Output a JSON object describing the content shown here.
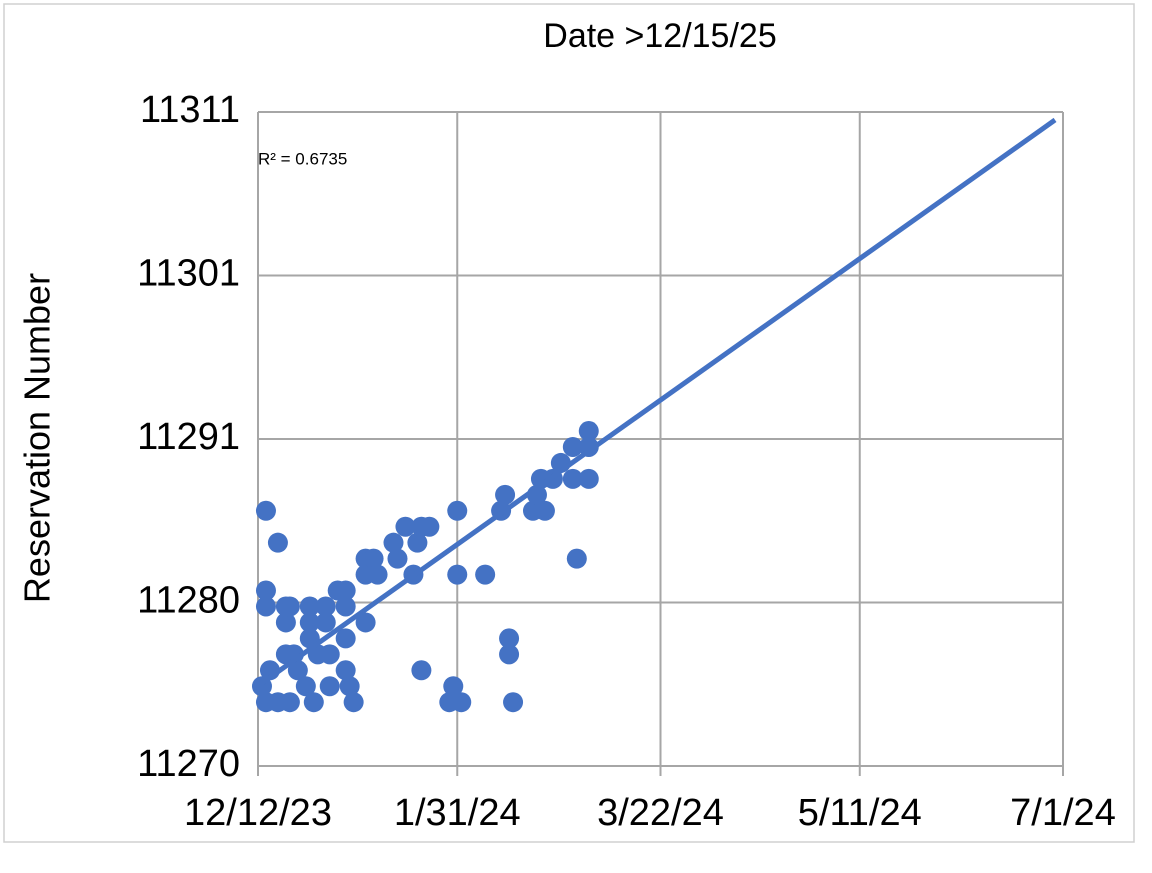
{
  "chart_data": {
    "type": "scatter",
    "title": "Date >12/15/25",
    "y_label": "Reservation Number",
    "annotation": "R² = 0.6735",
    "xlim": [
      "12/12/23",
      "7/1/24"
    ],
    "xticks": [
      "12/12/23",
      "1/31/24",
      "3/22/24",
      "5/11/24",
      "7/1/24"
    ],
    "ylim": [
      11270,
      11311
    ],
    "yticks": [
      11270,
      {
        "value": 11280.25,
        "label": "11280"
      },
      {
        "value": 11290.5,
        "label": "11291"
      },
      {
        "value": 11300.75,
        "label": "11301"
      },
      11311
    ],
    "grid": true,
    "series": [
      {
        "color": "#4472c4",
        "x": [
          "12/14/23",
          "12/14/23",
          "12/14/23",
          "12/13/23",
          "12/14/23",
          "12/15/23",
          "12/17/23",
          "12/19/23",
          "12/19/23",
          "12/20/23",
          "12/19/23",
          "12/21/23",
          "12/20/23",
          "12/17/23",
          "12/22/23",
          "12/24/23",
          "12/25/23",
          "12/25/23",
          "12/25/23",
          "12/26/23",
          "12/27/23",
          "12/29/23",
          "12/29/23",
          "12/30/23",
          "12/30/23",
          "1/1/24",
          "1/3/24",
          "1/3/24",
          "1/3/24",
          "1/3/24",
          "1/4/24",
          "1/5/24",
          "1/8/24",
          "1/8/24",
          "1/8/24",
          "1/10/24",
          "1/11/24",
          "1/15/24",
          "1/16/24",
          "1/18/24",
          "1/20/24",
          "1/21/24",
          "1/22/24",
          "1/24/24",
          "1/22/24",
          "1/29/24",
          "1/30/24",
          "1/31/24",
          "1/31/24",
          "2/1/24",
          "2/7/24",
          "2/11/24",
          "2/12/24",
          "2/13/24",
          "2/13/24",
          "2/14/24",
          "2/19/24",
          "2/20/24",
          "2/21/24",
          "2/22/24",
          "2/24/24",
          "2/26/24",
          "2/29/24",
          "3/1/24",
          "2/29/24",
          "3/4/24",
          "3/4/24",
          "3/4/24"
        ],
        "values": [
          11286,
          11281,
          11280,
          11275,
          11274,
          11276,
          11284,
          11279,
          11280,
          11280,
          11277,
          11277,
          11274,
          11274,
          11276,
          11275,
          11280,
          11279,
          11278,
          11274,
          11277,
          11280,
          11279,
          11277,
          11275,
          11281,
          11281,
          11280,
          11278,
          11276,
          11275,
          11274,
          11283,
          11282,
          11279,
          11283,
          11282,
          11284,
          11283,
          11285,
          11282,
          11284,
          11285,
          11285,
          11276,
          11274,
          11275,
          11286,
          11282,
          11274,
          11282,
          11286,
          11287,
          11278,
          11277,
          11274,
          11286,
          11287,
          11288,
          11286,
          11288,
          11289,
          11290,
          11283,
          11288,
          11291,
          11290,
          11288
        ]
      }
    ],
    "trendline": {
      "color": "#4472c4",
      "x": [
        "12/13/23",
        "6/29/24"
      ],
      "values": [
        11275.2,
        11310.5
      ]
    }
  }
}
